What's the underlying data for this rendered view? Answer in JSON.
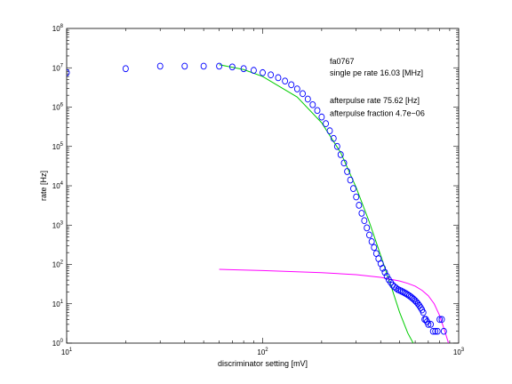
{
  "chart_data": {
    "type": "scatter",
    "title": "",
    "xlabel": "discriminator setting [mV]",
    "ylabel": "rate [Hz]",
    "x_scale": "log",
    "y_scale": "log",
    "xlim": [
      10,
      1000
    ],
    "ylim": [
      1,
      100000000
    ],
    "x_ticks": [
      {
        "base": "10",
        "exp": "1",
        "value": 10
      },
      {
        "base": "10",
        "exp": "2",
        "value": 100
      },
      {
        "base": "10",
        "exp": "3",
        "value": 1000
      }
    ],
    "y_ticks": [
      {
        "base": "10",
        "exp": "0",
        "value": 1
      },
      {
        "base": "10",
        "exp": "1",
        "value": 10
      },
      {
        "base": "10",
        "exp": "2",
        "value": 100
      },
      {
        "base": "10",
        "exp": "3",
        "value": 1000
      },
      {
        "base": "10",
        "exp": "4",
        "value": 10000
      },
      {
        "base": "10",
        "exp": "5",
        "value": 100000
      },
      {
        "base": "10",
        "exp": "6",
        "value": 1000000
      },
      {
        "base": "10",
        "exp": "7",
        "value": 10000000
      },
      {
        "base": "10",
        "exp": "8",
        "value": 100000000
      }
    ],
    "grid": false,
    "colors": {
      "measured": "#0000ff",
      "single_pe_fit": "#00cc00",
      "afterpulse_fit": "#ff00ff",
      "axes": "#000000"
    },
    "annotations": [
      {
        "text": "fa0767",
        "x": 220,
        "y": 12600000
      },
      {
        "text": "single pe rate 16.03 [MHz]",
        "x": 220,
        "y": 6300000
      },
      {
        "text": "afterpulse rate 75.62 [Hz]",
        "x": 220,
        "y": 1260000
      },
      {
        "text": "afterpulse fraction 4.7e−06",
        "x": 220,
        "y": 600000
      }
    ],
    "series": [
      {
        "kind": "points",
        "x": [
          10,
          20,
          30,
          40,
          50,
          60,
          70,
          80,
          90,
          100,
          110,
          120,
          130,
          140,
          150,
          160,
          170,
          180,
          190,
          200,
          210,
          220,
          230,
          240,
          250,
          260,
          270,
          280,
          290,
          300,
          310,
          320,
          330,
          340,
          350,
          360,
          370,
          380,
          390,
          400,
          410,
          420,
          430,
          440,
          450,
          460,
          470,
          480,
          490,
          500,
          510,
          520,
          530,
          540,
          550,
          560,
          570,
          580,
          590,
          600,
          610,
          620,
          630,
          640,
          650,
          660,
          670,
          680,
          690,
          700,
          720,
          740,
          760,
          780,
          800,
          820,
          840
        ],
        "y": [
          7500000,
          9500000,
          11000000,
          11000000,
          11000000,
          11000000,
          10500000,
          9500000,
          8600000,
          7500000,
          6600000,
          5600000,
          4600000,
          3700000,
          2900000,
          2200000,
          1600000,
          1150000,
          820000,
          560000,
          380000,
          250000,
          160000,
          100000,
          62000,
          38000,
          23000,
          14000,
          8500,
          5200,
          3200,
          2000,
          1300,
          850,
          560,
          380,
          270,
          190,
          140,
          105,
          80,
          63,
          50,
          41,
          35,
          30,
          27,
          25,
          23,
          22,
          21,
          20,
          19,
          18,
          17,
          16,
          15,
          14,
          13,
          12,
          11,
          10,
          9,
          8,
          7,
          6,
          4,
          4,
          3.5,
          3,
          3,
          2,
          2,
          2,
          4,
          4,
          2
        ]
      },
      {
        "kind": "line",
        "x": [
          60,
          80,
          100,
          150,
          200,
          250,
          300,
          350,
          400,
          450,
          500,
          550,
          580,
          600
        ],
        "y": [
          12000000,
          9000000,
          6000000,
          1800000,
          400000,
          70000,
          9000,
          1200,
          170,
          30,
          6,
          1.8,
          1.1,
          0.8
        ]
      },
      {
        "kind": "line",
        "x": [
          60,
          100,
          200,
          300,
          400,
          500,
          550,
          600,
          650,
          700,
          750,
          800,
          850,
          900
        ],
        "y": [
          75,
          70,
          62,
          55,
          47,
          38,
          33,
          28,
          22,
          16,
          10,
          5,
          2,
          0.8
        ]
      }
    ]
  }
}
